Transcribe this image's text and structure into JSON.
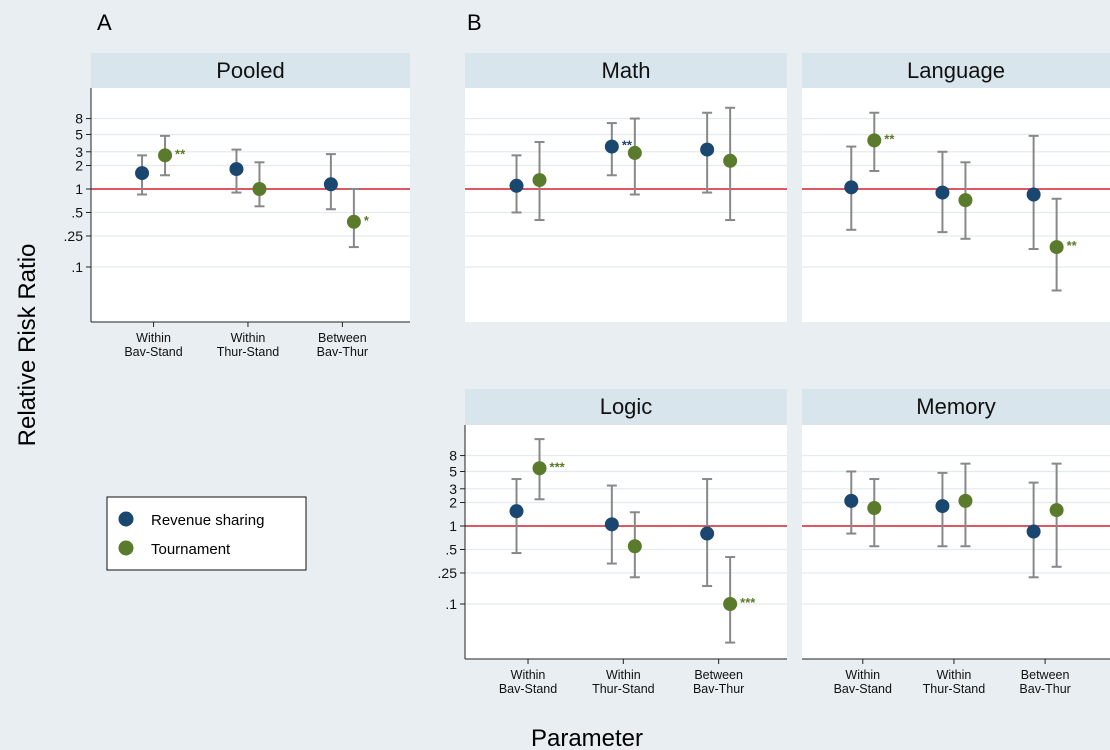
{
  "colors": {
    "background": "#e8eef2",
    "strip": "#d8e5ec",
    "plot_bg": "#ffffff",
    "grid": "#e4ebef",
    "reference_line": "#d0202e",
    "error_bar": "#888888",
    "revenue_sharing": "#1a4770",
    "tournament": "#5a7a2c",
    "text": "#111111"
  },
  "figure": {
    "y_axis_title": "Relative Risk Ratio",
    "x_axis_title": "Parameter",
    "panel_group_labels": [
      "A",
      "B"
    ]
  },
  "legend": {
    "items": [
      {
        "label": "Revenue sharing",
        "color": "#1a4770"
      },
      {
        "label": "Tournament",
        "color": "#5a7a2c"
      }
    ]
  },
  "chart_data": {
    "type": "scatter",
    "scale": "log",
    "reference_value": 1,
    "y_ticks": [
      0.1,
      0.25,
      0.5,
      1,
      2,
      3,
      5,
      8
    ],
    "y_tick_labels": [
      ".1",
      ".25",
      ".5",
      "1",
      "2",
      "3",
      "5",
      "8"
    ],
    "ylim": [
      0.02,
      25
    ],
    "x_tick_labels": [
      [
        "Within",
        "Bav-Stand"
      ],
      [
        "Within",
        "Thur-Stand"
      ],
      [
        "Between",
        "Bav-Thur"
      ]
    ],
    "series": [
      "Revenue sharing",
      "Tournament"
    ],
    "panels": [
      {
        "title": "Pooled",
        "group": "A",
        "points": [
          {
            "x": 0,
            "series": 0,
            "y": 1.6,
            "lo": 0.85,
            "hi": 2.7,
            "stars": ""
          },
          {
            "x": 0,
            "series": 1,
            "y": 2.7,
            "lo": 1.5,
            "hi": 4.8,
            "stars": "**"
          },
          {
            "x": 1,
            "series": 0,
            "y": 1.8,
            "lo": 0.9,
            "hi": 3.2,
            "stars": ""
          },
          {
            "x": 1,
            "series": 1,
            "y": 1.0,
            "lo": 0.6,
            "hi": 2.2,
            "stars": ""
          },
          {
            "x": 2,
            "series": 0,
            "y": 1.15,
            "lo": 0.55,
            "hi": 2.8,
            "stars": ""
          },
          {
            "x": 2,
            "series": 1,
            "y": 0.38,
            "lo": 0.18,
            "hi": 1.0,
            "stars": "*"
          }
        ]
      },
      {
        "title": "Math",
        "group": "B",
        "points": [
          {
            "x": 0,
            "series": 0,
            "y": 1.1,
            "lo": 0.5,
            "hi": 2.7,
            "stars": ""
          },
          {
            "x": 0,
            "series": 1,
            "y": 1.3,
            "lo": 0.4,
            "hi": 4.0,
            "stars": ""
          },
          {
            "x": 1,
            "series": 0,
            "y": 3.5,
            "lo": 1.5,
            "hi": 7.0,
            "stars": "**"
          },
          {
            "x": 1,
            "series": 1,
            "y": 2.9,
            "lo": 0.85,
            "hi": 8.0,
            "stars": ""
          },
          {
            "x": 2,
            "series": 0,
            "y": 3.2,
            "lo": 0.9,
            "hi": 9.5,
            "stars": ""
          },
          {
            "x": 2,
            "series": 1,
            "y": 2.3,
            "lo": 0.4,
            "hi": 11.0,
            "stars": ""
          }
        ]
      },
      {
        "title": "Language",
        "group": "B",
        "points": [
          {
            "x": 0,
            "series": 0,
            "y": 1.05,
            "lo": 0.3,
            "hi": 3.5,
            "stars": ""
          },
          {
            "x": 0,
            "series": 1,
            "y": 4.2,
            "lo": 1.7,
            "hi": 9.5,
            "stars": "**"
          },
          {
            "x": 1,
            "series": 0,
            "y": 0.9,
            "lo": 0.28,
            "hi": 3.0,
            "stars": ""
          },
          {
            "x": 1,
            "series": 1,
            "y": 0.72,
            "lo": 0.23,
            "hi": 2.2,
            "stars": ""
          },
          {
            "x": 2,
            "series": 0,
            "y": 0.85,
            "lo": 0.17,
            "hi": 4.8,
            "stars": ""
          },
          {
            "x": 2,
            "series": 1,
            "y": 0.18,
            "lo": 0.05,
            "hi": 0.75,
            "stars": "**"
          }
        ]
      },
      {
        "title": "Logic",
        "group": "B",
        "points": [
          {
            "x": 0,
            "series": 0,
            "y": 1.55,
            "lo": 0.45,
            "hi": 4.0,
            "stars": ""
          },
          {
            "x": 0,
            "series": 1,
            "y": 5.5,
            "lo": 2.2,
            "hi": 13.0,
            "stars": "***"
          },
          {
            "x": 1,
            "series": 0,
            "y": 1.05,
            "lo": 0.33,
            "hi": 3.3,
            "stars": ""
          },
          {
            "x": 1,
            "series": 1,
            "y": 0.55,
            "lo": 0.22,
            "hi": 1.5,
            "stars": ""
          },
          {
            "x": 2,
            "series": 0,
            "y": 0.8,
            "lo": 0.17,
            "hi": 4.0,
            "stars": ""
          },
          {
            "x": 2,
            "series": 1,
            "y": 0.1,
            "lo": 0.032,
            "hi": 0.4,
            "stars": "***"
          }
        ]
      },
      {
        "title": "Memory",
        "group": "B",
        "points": [
          {
            "x": 0,
            "series": 0,
            "y": 2.1,
            "lo": 0.8,
            "hi": 5.0,
            "stars": ""
          },
          {
            "x": 0,
            "series": 1,
            "y": 1.7,
            "lo": 0.55,
            "hi": 4.0,
            "stars": ""
          },
          {
            "x": 1,
            "series": 0,
            "y": 1.8,
            "lo": 0.55,
            "hi": 4.8,
            "stars": ""
          },
          {
            "x": 1,
            "series": 1,
            "y": 2.1,
            "lo": 0.55,
            "hi": 6.3,
            "stars": ""
          },
          {
            "x": 2,
            "series": 0,
            "y": 0.85,
            "lo": 0.22,
            "hi": 3.6,
            "stars": ""
          },
          {
            "x": 2,
            "series": 1,
            "y": 1.6,
            "lo": 0.3,
            "hi": 6.3,
            "stars": ""
          }
        ]
      }
    ]
  }
}
